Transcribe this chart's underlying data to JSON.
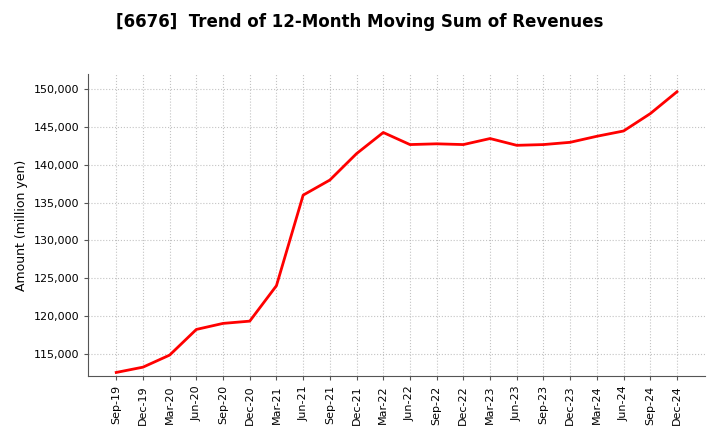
{
  "title": "[6676]  Trend of 12-Month Moving Sum of Revenues",
  "ylabel": "Amount (million yen)",
  "line_color": "#FF0000",
  "line_width": 2.0,
  "background_color": "#FFFFFF",
  "grid_color": "#AAAAAA",
  "ylim": [
    112000,
    152000
  ],
  "yticks": [
    115000,
    120000,
    125000,
    130000,
    135000,
    140000,
    145000,
    150000
  ],
  "x_labels": [
    "Sep-19",
    "Dec-19",
    "Mar-20",
    "Jun-20",
    "Sep-20",
    "Dec-20",
    "Mar-21",
    "Jun-21",
    "Sep-21",
    "Dec-21",
    "Mar-22",
    "Jun-22",
    "Sep-22",
    "Dec-22",
    "Mar-23",
    "Jun-23",
    "Sep-23",
    "Dec-23",
    "Mar-24",
    "Jun-24",
    "Sep-24",
    "Dec-24"
  ],
  "values": [
    112500,
    113200,
    114800,
    118200,
    119000,
    119300,
    124000,
    136000,
    138000,
    141500,
    144300,
    142700,
    142800,
    142700,
    143500,
    142600,
    142700,
    143000,
    143800,
    144500,
    146800,
    149700
  ]
}
